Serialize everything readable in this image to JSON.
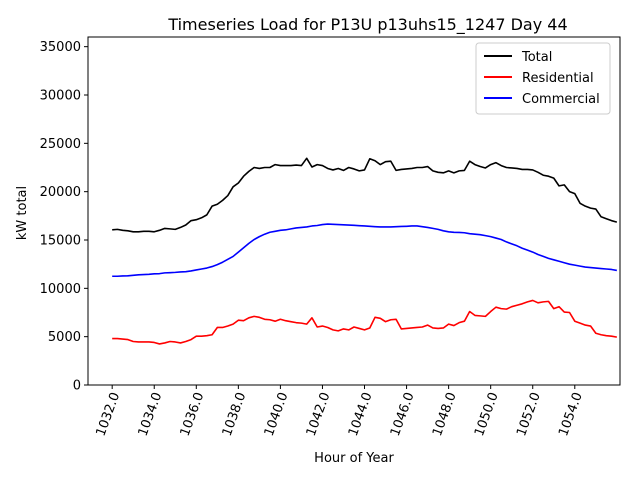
{
  "chart_data": {
    "type": "line",
    "title": "Timeseries Load for P13U p13uhs15_1247  Day 44",
    "xlabel": "Hour of Year",
    "ylabel": "kW total",
    "xlim": [
      1030.85,
      1056.15
    ],
    "ylim": [
      0,
      36000
    ],
    "xticks": [
      1032,
      1034,
      1036,
      1038,
      1040,
      1042,
      1044,
      1046,
      1048,
      1050,
      1052,
      1054
    ],
    "xtick_labels": [
      "1032.0",
      "1034.0",
      "1036.0",
      "1038.0",
      "1040.0",
      "1042.0",
      "1044.0",
      "1046.0",
      "1048.0",
      "1050.0",
      "1052.0",
      "1054.0"
    ],
    "yticks": [
      0,
      5000,
      10000,
      15000,
      20000,
      25000,
      30000,
      35000
    ],
    "ytick_labels": [
      "0",
      "5000",
      "10000",
      "15000",
      "20000",
      "25000",
      "30000",
      "35000"
    ],
    "grid": false,
    "legend_position": "top-right",
    "x_start": 1032,
    "x_step": 0.25,
    "series": [
      {
        "name": "Total",
        "color": "#000000",
        "values": [
          16050,
          16100,
          16000,
          15950,
          15850,
          15850,
          15900,
          15900,
          15850,
          16000,
          16200,
          16150,
          16100,
          16300,
          16550,
          17000,
          17100,
          17300,
          17600,
          18500,
          18700,
          19100,
          19600,
          20500,
          20900,
          21600,
          22100,
          22500,
          22400,
          22500,
          22500,
          22800,
          22700,
          22700,
          22700,
          22750,
          22700,
          23450,
          22550,
          22800,
          22700,
          22400,
          22250,
          22400,
          22200,
          22500,
          22350,
          22150,
          22250,
          23400,
          23200,
          22800,
          23100,
          23150,
          22200,
          22300,
          22350,
          22400,
          22500,
          22500,
          22600,
          22150,
          22000,
          21950,
          22150,
          21950,
          22150,
          22200,
          23150,
          22800,
          22600,
          22450,
          22800,
          23000,
          22700,
          22500,
          22450,
          22400,
          22300,
          22300,
          22250,
          22000,
          21700,
          21600,
          21400,
          20600,
          20700,
          20000,
          19800,
          18800,
          18500,
          18300,
          18200,
          17400,
          17200,
          17000,
          16850
        ]
      },
      {
        "name": "Residential",
        "color": "#ff0000",
        "values": [
          4800,
          4800,
          4750,
          4700,
          4500,
          4450,
          4450,
          4450,
          4400,
          4250,
          4350,
          4500,
          4450,
          4350,
          4500,
          4700,
          5050,
          5050,
          5100,
          5200,
          5950,
          5950,
          6100,
          6300,
          6700,
          6650,
          6950,
          7100,
          7000,
          6800,
          6750,
          6600,
          6800,
          6650,
          6550,
          6450,
          6400,
          6300,
          6950,
          6000,
          6100,
          5950,
          5700,
          5600,
          5800,
          5700,
          6000,
          5850,
          5700,
          5900,
          7000,
          6900,
          6550,
          6750,
          6800,
          5800,
          5850,
          5900,
          5950,
          6000,
          6200,
          5900,
          5850,
          5900,
          6300,
          6150,
          6450,
          6600,
          7600,
          7200,
          7150,
          7100,
          7600,
          8050,
          7900,
          7850,
          8100,
          8250,
          8400,
          8600,
          8750,
          8500,
          8600,
          8650,
          7900,
          8100,
          7550,
          7500,
          6600,
          6400,
          6200,
          6100,
          5350,
          5200,
          5100,
          5050,
          4950
        ]
      },
      {
        "name": "Commercial",
        "color": "#0000ff",
        "values": [
          11250,
          11250,
          11280,
          11300,
          11350,
          11400,
          11420,
          11450,
          11500,
          11520,
          11600,
          11620,
          11650,
          11700,
          11720,
          11800,
          11900,
          12000,
          12100,
          12250,
          12450,
          12700,
          13000,
          13300,
          13750,
          14200,
          14650,
          15050,
          15350,
          15600,
          15800,
          15900,
          16000,
          16050,
          16150,
          16250,
          16300,
          16350,
          16450,
          16500,
          16600,
          16650,
          16620,
          16600,
          16570,
          16550,
          16520,
          16480,
          16450,
          16420,
          16380,
          16350,
          16350,
          16350,
          16380,
          16400,
          16420,
          16450,
          16450,
          16380,
          16300,
          16200,
          16100,
          15950,
          15850,
          15800,
          15780,
          15750,
          15650,
          15600,
          15550,
          15450,
          15350,
          15200,
          15050,
          14800,
          14600,
          14400,
          14150,
          13950,
          13750,
          13500,
          13300,
          13100,
          12950,
          12800,
          12650,
          12500,
          12400,
          12300,
          12200,
          12150,
          12100,
          12050,
          12000,
          11950,
          11850
        ]
      }
    ]
  }
}
